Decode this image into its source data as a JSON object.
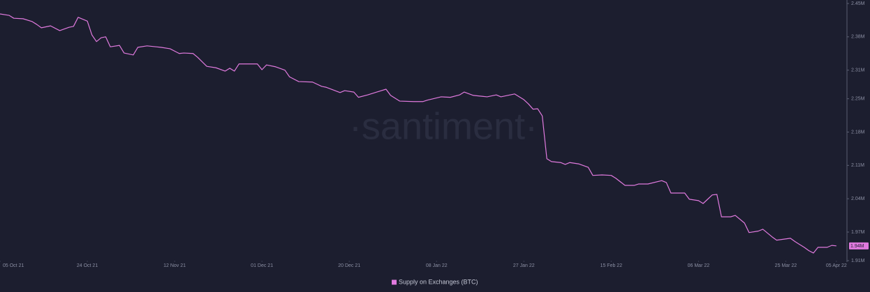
{
  "chart_data": {
    "type": "line",
    "watermark": "·santiment·",
    "x": [
      "2021-10-05",
      "2021-10-07",
      "2021-10-08",
      "2021-10-10",
      "2021-10-12",
      "2021-10-13",
      "2021-10-14",
      "2021-10-16",
      "2021-10-18",
      "2021-10-20",
      "2021-10-21",
      "2021-10-22",
      "2021-10-24",
      "2021-10-25",
      "2021-10-26",
      "2021-10-27",
      "2021-10-28",
      "2021-10-29",
      "2021-10-31",
      "2021-11-01",
      "2021-11-03",
      "2021-11-04",
      "2021-11-06",
      "2021-11-08",
      "2021-11-09",
      "2021-11-11",
      "2021-11-13",
      "2021-11-14",
      "2021-11-16",
      "2021-11-17",
      "2021-11-19",
      "2021-11-21",
      "2021-11-23",
      "2021-11-24",
      "2021-11-25",
      "2021-11-26",
      "2021-11-29",
      "2021-11-30",
      "2021-12-01",
      "2021-12-02",
      "2021-12-04",
      "2021-12-06",
      "2021-12-07",
      "2021-12-09",
      "2021-12-12",
      "2021-12-14",
      "2021-12-15",
      "2021-12-18",
      "2021-12-19",
      "2021-12-21",
      "2021-12-22",
      "2021-12-24",
      "2021-12-26",
      "2021-12-28",
      "2021-12-29",
      "2021-12-31",
      "2022-01-03",
      "2022-01-05",
      "2022-01-06",
      "2022-01-09",
      "2022-01-11",
      "2022-01-13",
      "2022-01-14",
      "2022-01-16",
      "2022-01-18",
      "2022-01-19",
      "2022-01-21",
      "2022-01-22",
      "2022-01-25",
      "2022-01-27",
      "2022-01-28",
      "2022-01-29",
      "2022-01-30",
      "2022-01-31",
      "2022-02-01",
      "2022-02-02",
      "2022-02-04",
      "2022-02-05",
      "2022-02-06",
      "2022-02-08",
      "2022-02-10",
      "2022-02-11",
      "2022-02-13",
      "2022-02-15",
      "2022-02-16",
      "2022-02-18",
      "2022-02-20",
      "2022-02-21",
      "2022-02-23",
      "2022-02-26",
      "2022-02-27",
      "2022-02-28",
      "2022-03-02",
      "2022-03-03",
      "2022-03-04",
      "2022-03-06",
      "2022-03-07",
      "2022-03-09",
      "2022-03-10",
      "2022-03-11",
      "2022-03-13",
      "2022-03-14",
      "2022-03-16",
      "2022-03-17",
      "2022-03-19",
      "2022-03-20",
      "2022-03-22",
      "2022-03-23",
      "2022-03-26",
      "2022-03-27",
      "2022-03-29",
      "2022-03-30",
      "2022-03-31",
      "2022-04-01",
      "2022-04-03",
      "2022-04-04",
      "2022-04-05"
    ],
    "series": [
      {
        "name": "Supply on Exchanges (BTC)",
        "color": "#e07ade",
        "values": [
          2428000,
          2425000,
          2419000,
          2418000,
          2412000,
          2406000,
          2399000,
          2403000,
          2393000,
          2400000,
          2402000,
          2421000,
          2413000,
          2384000,
          2370000,
          2378000,
          2380000,
          2359000,
          2362000,
          2346000,
          2342000,
          2358000,
          2361000,
          2359000,
          2358000,
          2355000,
          2345000,
          2346000,
          2345000,
          2337000,
          2318000,
          2315000,
          2308000,
          2314000,
          2308000,
          2323000,
          2323000,
          2323000,
          2311000,
          2321000,
          2317000,
          2310000,
          2296000,
          2286000,
          2285000,
          2276000,
          2274000,
          2263000,
          2267000,
          2264000,
          2253000,
          2258000,
          2264000,
          2270000,
          2257000,
          2245000,
          2244000,
          2244000,
          2247000,
          2254000,
          2253000,
          2258000,
          2264000,
          2257000,
          2255000,
          2254000,
          2258000,
          2254000,
          2260000,
          2248000,
          2239000,
          2228000,
          2229000,
          2214000,
          2124000,
          2118000,
          2116000,
          2112000,
          2116000,
          2113000,
          2106000,
          2089000,
          2090000,
          2089000,
          2083000,
          2068000,
          2068000,
          2071000,
          2071000,
          2078000,
          2074000,
          2052000,
          2052000,
          2052000,
          2039000,
          2036000,
          2030000,
          2048000,
          2049000,
          2002000,
          2002000,
          2005000,
          1989000,
          1969000,
          1972000,
          1976000,
          1960000,
          1953000,
          1957000,
          1950000,
          1938000,
          1931000,
          1926000,
          1938000,
          1938000,
          1942000,
          1941000
        ],
        "value_labels": [
          null,
          null,
          null,
          null,
          null,
          null,
          null,
          null,
          null,
          null,
          null,
          null,
          null,
          null,
          null,
          null,
          null,
          null,
          null,
          null,
          null,
          null,
          null,
          null,
          null,
          null,
          null,
          null,
          null,
          null,
          null,
          null,
          null,
          null,
          null,
          null,
          null,
          null,
          null,
          null,
          null,
          null,
          null,
          null,
          null,
          null,
          null,
          null,
          null,
          null,
          null,
          null,
          null,
          null,
          null,
          null,
          null,
          null,
          null,
          null,
          null,
          null,
          null,
          null,
          null,
          null,
          null,
          null,
          null,
          null,
          null,
          null,
          null,
          null,
          null,
          null,
          null,
          null,
          null,
          null,
          null,
          null,
          null,
          null,
          null,
          null,
          null,
          null,
          null,
          null,
          null,
          null,
          null,
          null,
          null,
          null,
          null,
          null,
          null,
          null,
          null,
          null,
          null,
          null,
          null,
          null,
          null,
          null,
          null,
          null,
          null,
          null,
          null,
          null,
          null,
          null,
          "1.94M"
        ]
      }
    ],
    "xlim": [
      "2021-10-05",
      "2022-04-07"
    ],
    "xticks": [
      {
        "value": "2021-10-05",
        "label": "05 Oct 21"
      },
      {
        "value": "2021-10-24",
        "label": "24 Oct 21"
      },
      {
        "value": "2021-11-12",
        "label": "12 Nov 21"
      },
      {
        "value": "2021-12-01",
        "label": "01 Dec 21"
      },
      {
        "value": "2021-12-20",
        "label": "20 Dec 21"
      },
      {
        "value": "2022-01-08",
        "label": "08 Jan 22"
      },
      {
        "value": "2022-01-27",
        "label": "27 Jan 22"
      },
      {
        "value": "2022-02-15",
        "label": "15 Feb 22"
      },
      {
        "value": "2022-03-06",
        "label": "06 Mar 22"
      },
      {
        "value": "2022-03-25",
        "label": "25 Mar 22"
      },
      {
        "value": "2022-04-05",
        "label": "05 Apr 22"
      }
    ],
    "ylim": [
      1910000,
      2450000
    ],
    "yticks": [
      {
        "value": 2450000,
        "label": "2.45M"
      },
      {
        "value": 2380000,
        "label": "2.38M"
      },
      {
        "value": 2310000,
        "label": "2.31M"
      },
      {
        "value": 2250000,
        "label": "2.25M"
      },
      {
        "value": 2180000,
        "label": "2.18M"
      },
      {
        "value": 2110000,
        "label": "2.11M"
      },
      {
        "value": 2040000,
        "label": "2.04M"
      },
      {
        "value": 1970000,
        "label": "1.97M"
      },
      {
        "value": 1910000,
        "label": "1.91M"
      }
    ],
    "grid": false
  }
}
